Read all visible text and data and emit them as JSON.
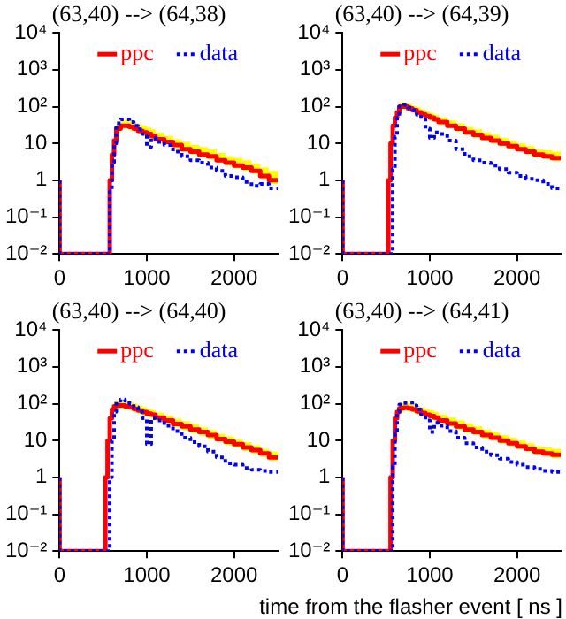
{
  "chart_data": [
    {
      "type": "step",
      "title": "(63,40) --> (64,38)",
      "log": "y",
      "legend": "top",
      "xlim": [
        0,
        2500
      ],
      "xticks": [
        0,
        1000,
        2000
      ],
      "ylim": [
        0.01,
        10000
      ],
      "yticks": [
        {
          "value": 0.01,
          "label": "10⁻²"
        },
        {
          "value": 0.1,
          "label": "10⁻¹"
        },
        {
          "value": 1,
          "label": "1"
        },
        {
          "value": 10,
          "label": "10"
        },
        {
          "value": 100,
          "label": "10²"
        },
        {
          "value": 1000,
          "label": "10³"
        },
        {
          "value": 10000,
          "label": "10⁴"
        }
      ],
      "x": [
        0,
        25,
        525,
        550,
        575,
        600,
        625,
        650,
        700,
        750,
        800,
        850,
        900,
        950,
        1000,
        1050,
        1100,
        1200,
        1300,
        1400,
        1500,
        1600,
        1700,
        1800,
        1900,
        2000,
        2100,
        2200,
        2300,
        2400,
        2500
      ],
      "series": [
        {
          "name": "ppc",
          "color": "#ff0000",
          "values": [
            1,
            0.01,
            0.01,
            0.01,
            0.01,
            1,
            5,
            12,
            25,
            30,
            30,
            28,
            25,
            22,
            20,
            18,
            16,
            13,
            11,
            9,
            7,
            6,
            5,
            4.5,
            3.5,
            3,
            2.5,
            2.2,
            1.8,
            1.3,
            1
          ],
          "upper": [
            null,
            null,
            null,
            null,
            null,
            1.5,
            7,
            16,
            35,
            42,
            42,
            40,
            36,
            33,
            30,
            27,
            24,
            20,
            16,
            13,
            11,
            9,
            8,
            7,
            5.5,
            4.5,
            4,
            3.5,
            2.8,
            2.2,
            1.8
          ],
          "lower": [
            null,
            null,
            null,
            null,
            null,
            0.8,
            4,
            10,
            20,
            25,
            25,
            23,
            21,
            18,
            16,
            15,
            13,
            11,
            9,
            7.5,
            6,
            5,
            4.2,
            3.7,
            3,
            2.5,
            2.1,
            1.8,
            1.5,
            1.1,
            0.8
          ]
        },
        {
          "name": "data",
          "color": "#0000ff",
          "line_style": "dotted",
          "values": [
            1,
            0.01,
            0.01,
            0.01,
            0.01,
            0.5,
            3,
            10,
            35,
            45,
            45,
            38,
            30,
            24,
            18,
            8,
            14,
            11,
            9,
            6,
            4.5,
            3.5,
            3,
            2.2,
            1.8,
            1.3,
            1.2,
            0.9,
            0.7,
            0.8,
            0.6
          ]
        }
      ]
    },
    {
      "type": "step",
      "title": "(63,40) --> (64,39)",
      "log": "y",
      "legend": "top",
      "xlim": [
        0,
        2500
      ],
      "xticks": [
        0,
        1000,
        2000
      ],
      "ylim": [
        0.01,
        10000
      ],
      "yticks": [
        {
          "value": 0.01,
          "label": "10⁻²"
        },
        {
          "value": 0.1,
          "label": "10⁻¹"
        },
        {
          "value": 1,
          "label": "1"
        },
        {
          "value": 10,
          "label": "10"
        },
        {
          "value": 100,
          "label": "10²"
        },
        {
          "value": 1000,
          "label": "10³"
        },
        {
          "value": 10000,
          "label": "10⁴"
        }
      ],
      "x": [
        0,
        25,
        525,
        550,
        575,
        600,
        625,
        650,
        700,
        750,
        800,
        850,
        900,
        950,
        1000,
        1050,
        1100,
        1200,
        1300,
        1400,
        1500,
        1600,
        1700,
        1800,
        1900,
        2000,
        2100,
        2200,
        2300,
        2400,
        2500
      ],
      "series": [
        {
          "name": "ppc",
          "color": "#ff0000",
          "values": [
            1,
            0.01,
            0.01,
            1,
            10,
            30,
            50,
            70,
            100,
            100,
            90,
            80,
            70,
            62,
            55,
            50,
            45,
            38,
            30,
            25,
            20,
            17,
            14,
            12,
            10,
            8.5,
            7,
            6,
            5,
            4.5,
            4
          ],
          "upper": [
            null,
            null,
            null,
            1.5,
            15,
            45,
            70,
            100,
            130,
            130,
            120,
            105,
            95,
            85,
            75,
            68,
            60,
            50,
            42,
            35,
            28,
            24,
            20,
            17,
            14,
            12,
            10,
            8.5,
            7,
            6.5,
            6
          ],
          "lower": [
            null,
            null,
            null,
            0.7,
            8,
            25,
            40,
            60,
            85,
            85,
            75,
            68,
            60,
            52,
            46,
            42,
            38,
            32,
            26,
            21,
            17,
            14,
            12,
            10,
            8.5,
            7,
            6,
            5,
            4.2,
            3.8,
            3.3
          ]
        },
        {
          "name": "data",
          "color": "#0000ff",
          "line_style": "dotted",
          "values": [
            1,
            0.01,
            0.01,
            0.01,
            0.01,
            2,
            15,
            50,
            100,
            110,
            95,
            80,
            60,
            45,
            25,
            14,
            20,
            18,
            12,
            7,
            4.5,
            3.5,
            3,
            2.5,
            2,
            1.6,
            1.3,
            1.1,
            1,
            0.8,
            0.6
          ]
        }
      ]
    },
    {
      "type": "step",
      "title": "(63,40) --> (64,40)",
      "log": "y",
      "legend": "top",
      "xlim": [
        0,
        2500
      ],
      "xticks": [
        0,
        1000,
        2000
      ],
      "ylim": [
        0.01,
        10000
      ],
      "yticks": [
        {
          "value": 0.01,
          "label": "10⁻²"
        },
        {
          "value": 0.1,
          "label": "10⁻¹"
        },
        {
          "value": 1,
          "label": "1"
        },
        {
          "value": 10,
          "label": "10"
        },
        {
          "value": 100,
          "label": "10²"
        },
        {
          "value": 1000,
          "label": "10³"
        },
        {
          "value": 10000,
          "label": "10⁴"
        }
      ],
      "x": [
        0,
        25,
        525,
        550,
        575,
        600,
        625,
        650,
        700,
        750,
        800,
        850,
        900,
        950,
        1000,
        1050,
        1100,
        1200,
        1300,
        1400,
        1500,
        1600,
        1700,
        1800,
        1900,
        2000,
        2100,
        2200,
        2300,
        2400,
        2500
      ],
      "series": [
        {
          "name": "ppc",
          "color": "#ff0000",
          "values": [
            1,
            0.01,
            0.01,
            1,
            10,
            40,
            70,
            85,
            90,
            90,
            85,
            80,
            72,
            65,
            59,
            54,
            50,
            42,
            35,
            28,
            24,
            20,
            17,
            14,
            11,
            9.3,
            8,
            6.5,
            5.5,
            4.5,
            3.5
          ],
          "upper": [
            null,
            null,
            null,
            1.5,
            15,
            55,
            95,
            115,
            125,
            125,
            118,
            110,
            100,
            90,
            80,
            74,
            68,
            57,
            48,
            39,
            33,
            28,
            23,
            19,
            15,
            13,
            11,
            9,
            7.5,
            6,
            5
          ],
          "lower": [
            null,
            null,
            null,
            0.7,
            7,
            30,
            55,
            70,
            75,
            75,
            70,
            65,
            58,
            52,
            48,
            44,
            40,
            34,
            28,
            23,
            19,
            16,
            13.5,
            11,
            9,
            7.5,
            6.5,
            5.2,
            4.5,
            3.6,
            2.8
          ]
        },
        {
          "name": "data",
          "color": "#0000ff",
          "line_style": "dotted",
          "values": [
            1,
            0.01,
            0.01,
            0.01,
            0.01,
            1,
            10,
            60,
            120,
            130,
            120,
            100,
            80,
            60,
            40,
            8,
            40,
            35,
            25,
            18,
            12,
            9,
            7,
            5,
            3.5,
            2.4,
            2.2,
            1.8,
            1.6,
            1.5,
            1.4
          ]
        }
      ]
    },
    {
      "type": "step",
      "title": "(63,40) --> (64,41)",
      "xlabel": "time from the flasher event [ ns ]",
      "log": "y",
      "legend": "top",
      "xlim": [
        0,
        2500
      ],
      "xticks": [
        0,
        1000,
        2000
      ],
      "ylim": [
        0.01,
        10000
      ],
      "yticks": [
        {
          "value": 0.01,
          "label": "10⁻²"
        },
        {
          "value": 0.1,
          "label": "10⁻¹"
        },
        {
          "value": 1,
          "label": "1"
        },
        {
          "value": 10,
          "label": "10"
        },
        {
          "value": 100,
          "label": "10²"
        },
        {
          "value": 1000,
          "label": "10³"
        },
        {
          "value": 10000,
          "label": "10⁴"
        }
      ],
      "x": [
        0,
        25,
        525,
        550,
        575,
        600,
        625,
        650,
        700,
        750,
        800,
        850,
        900,
        950,
        1000,
        1050,
        1100,
        1200,
        1300,
        1400,
        1500,
        1600,
        1700,
        1800,
        1900,
        2000,
        2100,
        2200,
        2300,
        2400,
        2500
      ],
      "series": [
        {
          "name": "ppc",
          "color": "#ff0000",
          "values": [
            1,
            0.01,
            0.01,
            0.01,
            1,
            10,
            40,
            60,
            75,
            78,
            75,
            70,
            62,
            56,
            50,
            46,
            42,
            35,
            29,
            24,
            20,
            17,
            14,
            12,
            10,
            8.4,
            7,
            6,
            5,
            4.5,
            4.1
          ],
          "upper": [
            null,
            null,
            null,
            null,
            1.5,
            15,
            55,
            85,
            105,
            110,
            105,
            98,
            88,
            80,
            72,
            66,
            60,
            50,
            42,
            35,
            29,
            24,
            20,
            17,
            14,
            12,
            10,
            8.5,
            7,
            6.5,
            6
          ],
          "lower": [
            null,
            null,
            null,
            null,
            0.7,
            7,
            30,
            48,
            62,
            65,
            62,
            58,
            51,
            46,
            41,
            38,
            35,
            29,
            24,
            20,
            16.5,
            14,
            11.5,
            10,
            8.3,
            7,
            5.8,
            5,
            4.2,
            3.7,
            3.3
          ]
        },
        {
          "name": "data",
          "color": "#0000ff",
          "line_style": "dotted",
          "values": [
            1,
            0.01,
            0.01,
            0.01,
            0.01,
            2,
            15,
            60,
            95,
            105,
            107,
            90,
            70,
            50,
            35,
            17,
            30,
            25,
            18,
            12,
            8.4,
            6.5,
            5,
            4,
            3.2,
            2.6,
            2.2,
            1.9,
            1.7,
            1.5,
            1.4
          ]
        }
      ]
    }
  ]
}
